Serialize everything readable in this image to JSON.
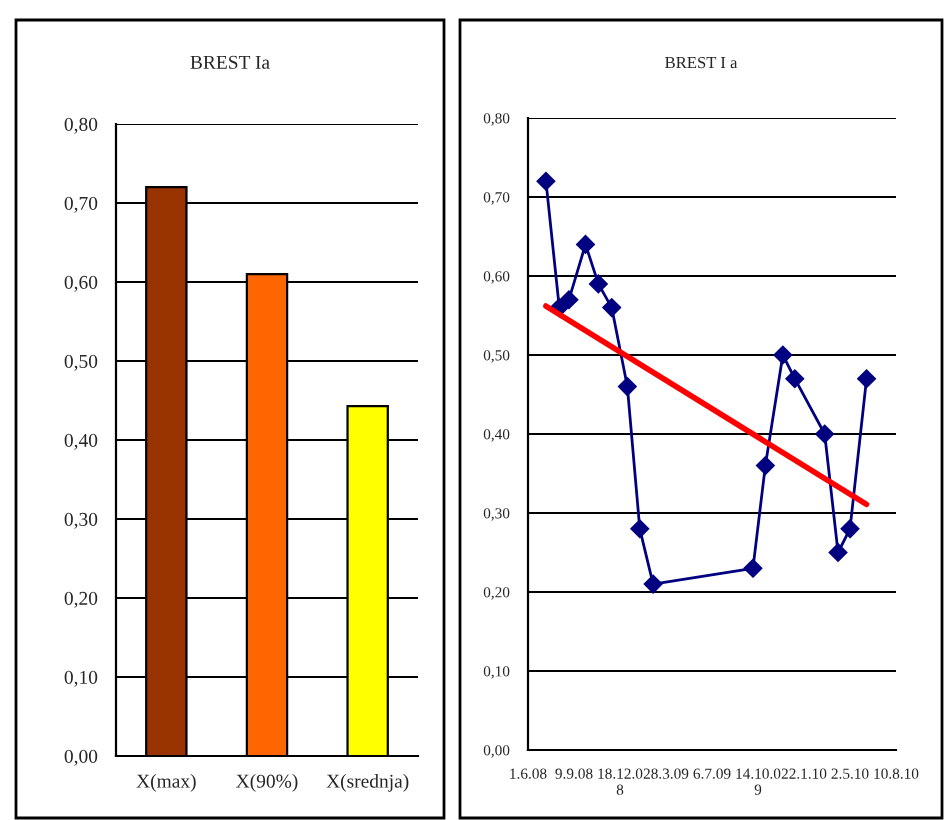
{
  "chart_data": [
    {
      "type": "bar",
      "title": "BREST Ia",
      "categories": [
        "X(max)",
        "X(90%)",
        "X(srednja)"
      ],
      "values": [
        0.72,
        0.61,
        0.443
      ],
      "colors": [
        "#993300",
        "#ff6600",
        "#ffff00"
      ],
      "ylim": [
        0,
        0.8
      ],
      "yticks": [
        {
          "value": 0,
          "label": "0,00"
        },
        {
          "value": 0.1,
          "label": "0,10"
        },
        {
          "value": 0.2,
          "label": "0,20"
        },
        {
          "value": 0.3,
          "label": "0,30"
        },
        {
          "value": 0.4,
          "label": "0,40"
        },
        {
          "value": 0.5,
          "label": "0,50"
        },
        {
          "value": 0.6,
          "label": "0,60"
        },
        {
          "value": 0.7,
          "label": "0,70"
        },
        {
          "value": 0.8,
          "label": "0,80"
        }
      ],
      "grid": "y",
      "legend": false
    },
    {
      "type": "line",
      "title": "BREST I a",
      "marker": "diamond",
      "grid": "y",
      "legend": false,
      "x": [
        "2008-07-10",
        "2008-08-08",
        "2008-08-29",
        "2008-10-04",
        "2008-11-01",
        "2008-11-30",
        "2009-01-03",
        "2009-01-30",
        "2009-02-28",
        "2009-10-03",
        "2009-10-30",
        "2009-12-07",
        "2010-01-02",
        "2010-03-08",
        "2010-04-06",
        "2010-05-02",
        "2010-06-07"
      ],
      "series": [
        {
          "color": "#000080",
          "values": [
            0.72,
            0.56,
            0.57,
            0.64,
            0.59,
            0.56,
            0.46,
            0.28,
            0.21,
            0.23,
            0.36,
            0.5,
            0.47,
            0.4,
            0.25,
            0.28,
            0.47
          ]
        },
        {
          "type": "line",
          "marker": "none",
          "color": "#ff0000",
          "x": [
            "2008-07-10",
            "2010-06-07"
          ],
          "values": [
            0.562,
            0.311
          ]
        }
      ],
      "xlim": [
        "2008-06-01",
        "2010-08-10"
      ],
      "xticks": [
        {
          "value": "2008-06-01",
          "label": "1.6.08"
        },
        {
          "value": "2008-09-09",
          "label": "9.9.08"
        },
        {
          "value": "2008-12-18",
          "label": "18.12.08"
        },
        {
          "value": "2009-03-28",
          "label": "28.3.09"
        },
        {
          "value": "2009-07-06",
          "label": "6.7.09"
        },
        {
          "value": "2009-10-14",
          "label": "14.10.09"
        },
        {
          "value": "2010-01-22",
          "label": "22.1.10"
        },
        {
          "value": "2010-05-02",
          "label": "2.5.10"
        },
        {
          "value": "2010-08-10",
          "label": "10.8.10"
        }
      ],
      "ylim": [
        0,
        0.8
      ],
      "yticks": [
        {
          "value": 0,
          "label": "0,00"
        },
        {
          "value": 0.1,
          "label": "0,10"
        },
        {
          "value": 0.2,
          "label": "0,20"
        },
        {
          "value": 0.3,
          "label": "0,30"
        },
        {
          "value": 0.4,
          "label": "0,40"
        },
        {
          "value": 0.5,
          "label": "0,50"
        },
        {
          "value": 0.6,
          "label": "0,60"
        },
        {
          "value": 0.7,
          "label": "0,70"
        },
        {
          "value": 0.8,
          "label": "0,80"
        }
      ]
    }
  ]
}
